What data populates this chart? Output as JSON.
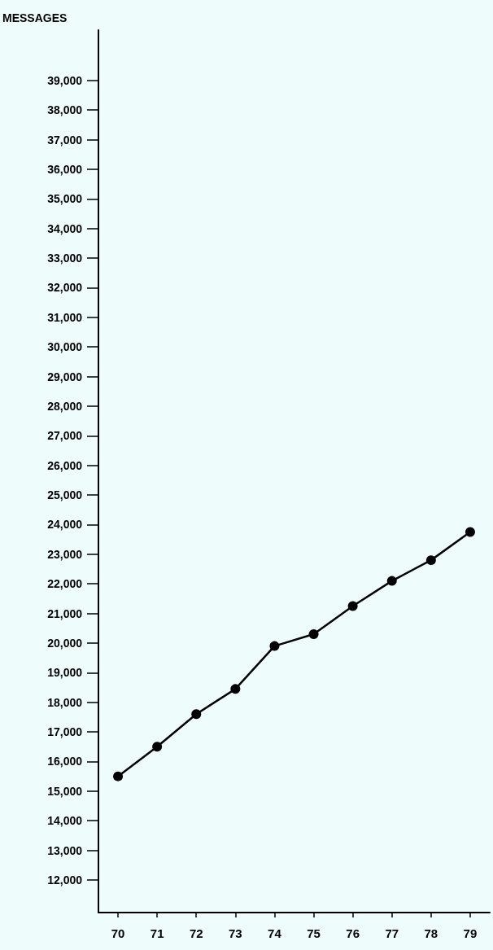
{
  "chart_data": {
    "type": "line",
    "ylabel": "MESSAGES",
    "categories": [
      "70",
      "71",
      "72",
      "73",
      "74",
      "75",
      "76",
      "77",
      "78",
      "79"
    ],
    "series": [
      {
        "color": "#000000",
        "values": [
          15500,
          16500,
          17600,
          18450,
          19900,
          20300,
          21250,
          22100,
          22800,
          23750
        ]
      }
    ],
    "ylim": [
      10900,
      40700
    ],
    "yticks": [
      {
        "value": 12000,
        "label": "12,000"
      },
      {
        "value": 13000,
        "label": "13,000"
      },
      {
        "value": 14000,
        "label": "14,000"
      },
      {
        "value": 15000,
        "label": "15,000"
      },
      {
        "value": 16000,
        "label": "16,000"
      },
      {
        "value": 17000,
        "label": "17,000"
      },
      {
        "value": 18000,
        "label": "18,000"
      },
      {
        "value": 19000,
        "label": "19,000"
      },
      {
        "value": 20000,
        "label": "20,000"
      },
      {
        "value": 21000,
        "label": "21,000"
      },
      {
        "value": 22000,
        "label": "22,000"
      },
      {
        "value": 23000,
        "label": "23,000"
      },
      {
        "value": 24000,
        "label": "24,000"
      },
      {
        "value": 25000,
        "label": "25,000"
      },
      {
        "value": 26000,
        "label": "26,000"
      },
      {
        "value": 27000,
        "label": "27,000"
      },
      {
        "value": 28000,
        "label": "28,000"
      },
      {
        "value": 29000,
        "label": "29,000"
      },
      {
        "value": 30000,
        "label": "30,000"
      },
      {
        "value": 31000,
        "label": "31,000"
      },
      {
        "value": 32000,
        "label": "32,000"
      },
      {
        "value": 33000,
        "label": "33,000"
      },
      {
        "value": 34000,
        "label": "34,000"
      },
      {
        "value": 35000,
        "label": "35,000"
      },
      {
        "value": 36000,
        "label": "36,000"
      },
      {
        "value": 37000,
        "label": "37,000"
      },
      {
        "value": 38000,
        "label": "38,000"
      },
      {
        "value": 39000,
        "label": "39,000"
      }
    ],
    "grid": false,
    "marker": "circle",
    "line_style": "solid"
  }
}
